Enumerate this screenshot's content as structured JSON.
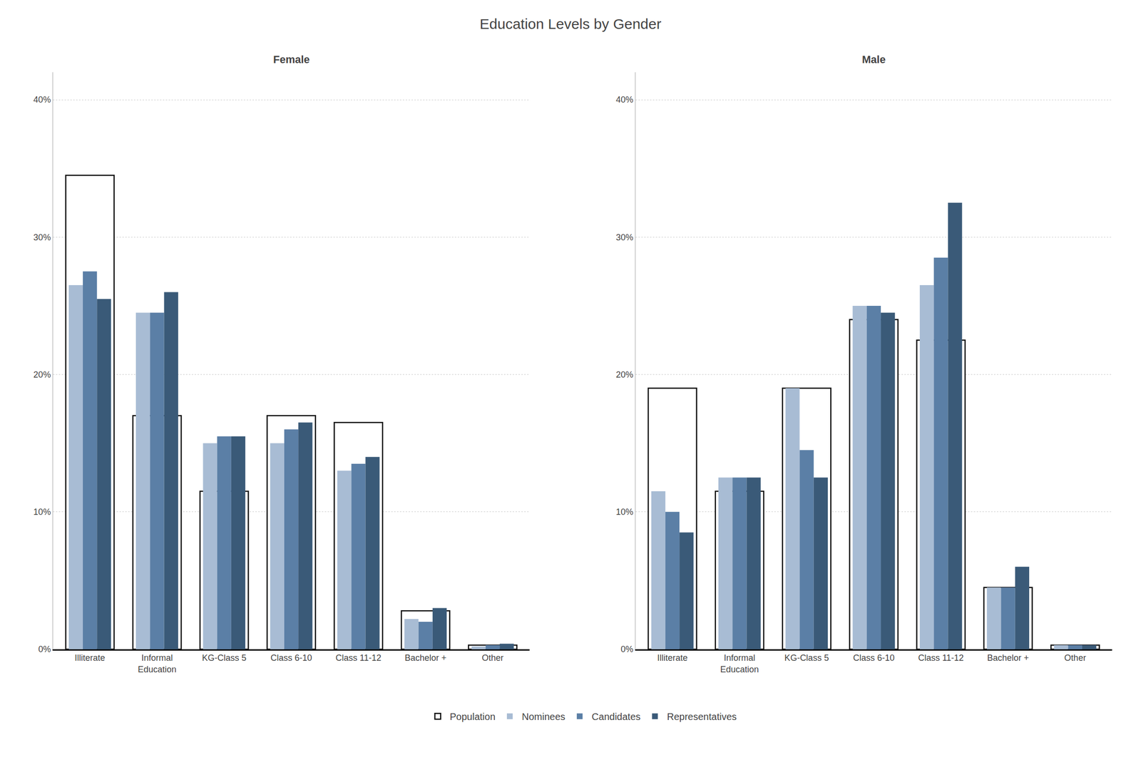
{
  "title": "Education Levels by Gender",
  "chart_data": [
    {
      "type": "bar",
      "title": "Female",
      "categories": [
        "Illiterate",
        "Informal\nEducation",
        "KG-Class 5",
        "Class 6-10",
        "Class 11-12",
        "Bachelor +",
        "Other"
      ],
      "series": [
        {
          "name": "Population",
          "color": "white",
          "values": [
            34.5,
            17.0,
            11.5,
            17.0,
            16.5,
            2.8,
            0.3
          ]
        },
        {
          "name": "Nominees",
          "color": "#a8bcd4",
          "values": [
            26.5,
            24.5,
            15.0,
            15.0,
            13.0,
            2.2,
            0.2
          ]
        },
        {
          "name": "Candidates",
          "color": "#5b7fa6",
          "values": [
            27.5,
            24.5,
            15.5,
            16.0,
            13.5,
            2.0,
            0.3
          ]
        },
        {
          "name": "Representatives",
          "color": "#3a5a78",
          "values": [
            25.5,
            26.0,
            15.5,
            16.5,
            14.0,
            3.0,
            0.4
          ]
        }
      ],
      "ylim": [
        0,
        42
      ],
      "yticks": [
        {
          "value": 0,
          "label": "0%"
        },
        {
          "value": 10,
          "label": "10%"
        },
        {
          "value": 20,
          "label": "20%"
        },
        {
          "value": 30,
          "label": "30%"
        },
        {
          "value": 40,
          "label": "40%"
        }
      ],
      "grid": true,
      "legend": "bottom"
    },
    {
      "type": "bar",
      "title": "Male",
      "categories": [
        "Illiterate",
        "Informal\nEducation",
        "KG-Class 5",
        "Class 6-10",
        "Class 11-12",
        "Bachelor +",
        "Other"
      ],
      "series": [
        {
          "name": "Population",
          "color": "white",
          "values": [
            19.0,
            11.5,
            19.0,
            24.0,
            22.5,
            4.5,
            0.3
          ]
        },
        {
          "name": "Nominees",
          "color": "#a8bcd4",
          "values": [
            11.5,
            12.5,
            19.0,
            25.0,
            26.5,
            4.5,
            0.3
          ]
        },
        {
          "name": "Candidates",
          "color": "#5b7fa6",
          "values": [
            10.0,
            12.5,
            14.5,
            25.0,
            28.5,
            4.5,
            0.3
          ]
        },
        {
          "name": "Representatives",
          "color": "#3a5a78",
          "values": [
            8.5,
            12.5,
            12.5,
            24.5,
            32.5,
            6.0,
            0.3
          ]
        }
      ],
      "ylim": [
        0,
        42
      ],
      "yticks": [
        {
          "value": 0,
          "label": "0%"
        },
        {
          "value": 10,
          "label": "10%"
        },
        {
          "value": 20,
          "label": "20%"
        },
        {
          "value": 30,
          "label": "30%"
        },
        {
          "value": 40,
          "label": "40%"
        }
      ],
      "grid": true,
      "legend": "bottom"
    }
  ]
}
